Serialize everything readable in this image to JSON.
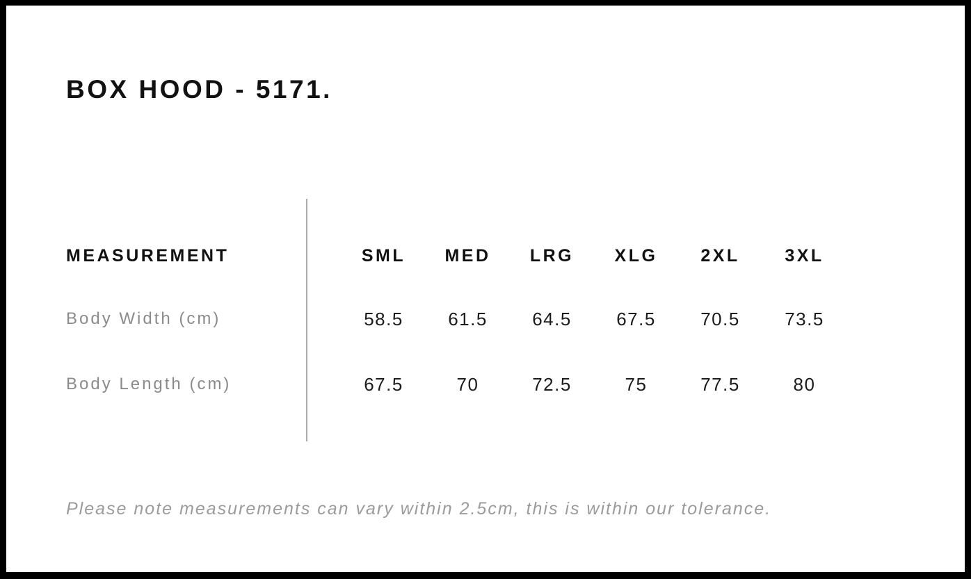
{
  "page": {
    "title": "BOX HOOD - 5171.",
    "note": "Please note measurements can vary within 2.5cm, this is within our tolerance."
  },
  "size_chart": {
    "header_label": "MEASUREMENT",
    "columns": [
      "SML",
      "MED",
      "LRG",
      "XLG",
      "2XL",
      "3XL"
    ],
    "rows": [
      {
        "label": "Body Width (cm)",
        "values": [
          "58.5",
          "61.5",
          "64.5",
          "67.5",
          "70.5",
          "73.5"
        ]
      },
      {
        "label": "Body Length (cm)",
        "values": [
          "67.5",
          "70",
          "72.5",
          "75",
          "77.5",
          "80"
        ]
      }
    ]
  },
  "colors": {
    "frame": "#000000",
    "text_primary": "#111111",
    "text_value": "#1c1c1c",
    "text_muted": "#8b8b8b",
    "note_text": "#9b9b9b",
    "divider": "#ababab",
    "background": "#ffffff"
  }
}
